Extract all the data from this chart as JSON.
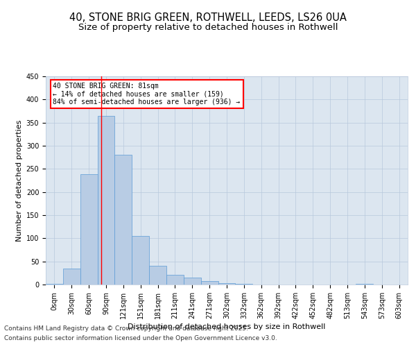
{
  "title_line1": "40, STONE BRIG GREEN, ROTHWELL, LEEDS, LS26 0UA",
  "title_line2": "Size of property relative to detached houses in Rothwell",
  "xlabel": "Distribution of detached houses by size in Rothwell",
  "ylabel": "Number of detached properties",
  "categories": [
    "0sqm",
    "30sqm",
    "60sqm",
    "90sqm",
    "121sqm",
    "151sqm",
    "181sqm",
    "211sqm",
    "241sqm",
    "271sqm",
    "302sqm",
    "332sqm",
    "362sqm",
    "392sqm",
    "422sqm",
    "452sqm",
    "482sqm",
    "513sqm",
    "543sqm",
    "573sqm",
    "603sqm"
  ],
  "values": [
    2,
    34,
    238,
    365,
    281,
    105,
    41,
    21,
    15,
    7,
    3,
    1,
    0,
    0,
    0,
    0,
    0,
    0,
    2,
    0,
    0
  ],
  "bar_color": "#b8cce4",
  "bar_edge_color": "#5b9bd5",
  "background_color": "#ffffff",
  "plot_bg_color": "#dce6f0",
  "grid_color": "#b8c8dc",
  "vline_x": 2.7,
  "vline_color": "red",
  "annotation_text": "40 STONE BRIG GREEN: 81sqm\n← 14% of detached houses are smaller (159)\n84% of semi-detached houses are larger (936) →",
  "annotation_box_color": "red",
  "ylim": [
    0,
    450
  ],
  "yticks": [
    0,
    50,
    100,
    150,
    200,
    250,
    300,
    350,
    400,
    450
  ],
  "footer_line1": "Contains HM Land Registry data © Crown copyright and database right 2025.",
  "footer_line2": "Contains public sector information licensed under the Open Government Licence v3.0.",
  "title_fontsize": 10.5,
  "subtitle_fontsize": 9.5,
  "axis_label_fontsize": 8,
  "tick_fontsize": 7,
  "footer_fontsize": 6.5
}
